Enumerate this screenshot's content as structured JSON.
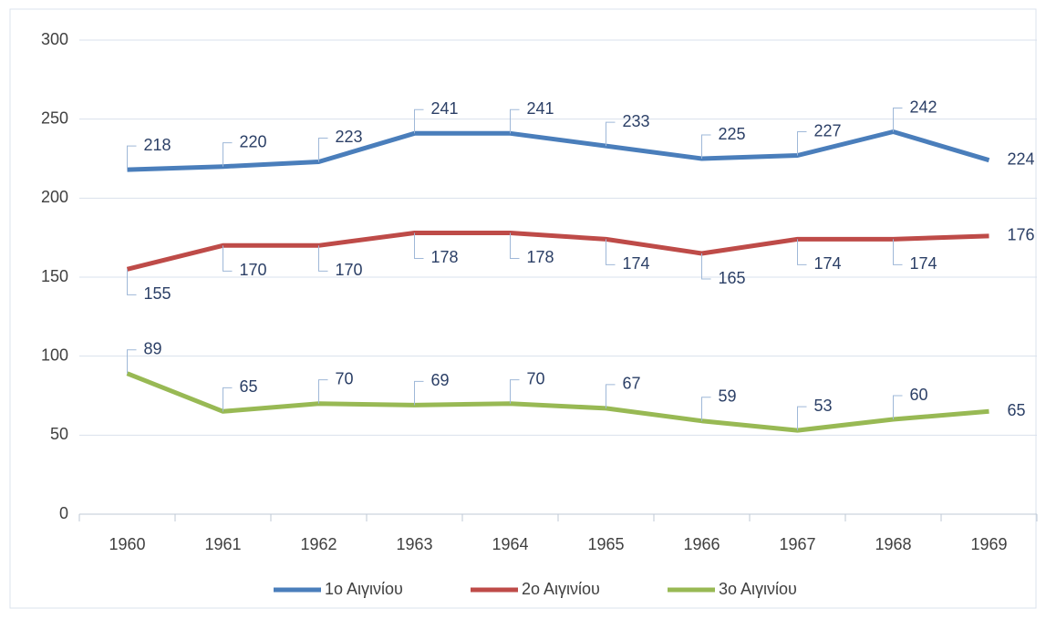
{
  "chart_data": {
    "type": "line",
    "categories": [
      "1960",
      "1961",
      "1962",
      "1963",
      "1964",
      "1965",
      "1966",
      "1967",
      "1968",
      "1969"
    ],
    "series": [
      {
        "name": "1ο Αιγινίου",
        "color": "#4a7ebb",
        "values": [
          218,
          220,
          223,
          241,
          241,
          233,
          225,
          227,
          242,
          224
        ]
      },
      {
        "name": "2ο Αιγινίου",
        "color": "#be4b48",
        "values": [
          155,
          170,
          170,
          178,
          178,
          174,
          165,
          174,
          174,
          176
        ]
      },
      {
        "name": "3ο Αιγινίου",
        "color": "#98b954",
        "values": [
          89,
          65,
          70,
          69,
          70,
          67,
          59,
          53,
          60,
          65
        ]
      }
    ],
    "ylim": [
      0,
      300
    ],
    "yticks": [
      0,
      50,
      100,
      150,
      200,
      250,
      300
    ],
    "grid": true,
    "legend": "bottom"
  }
}
